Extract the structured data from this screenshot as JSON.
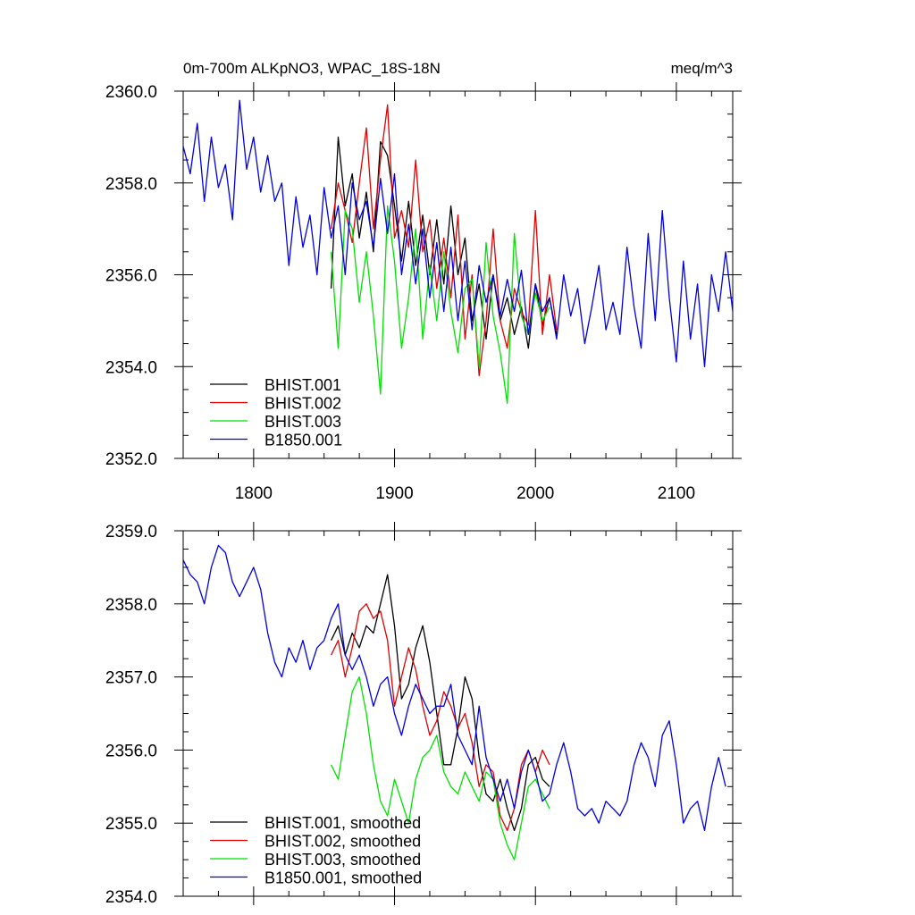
{
  "colors": {
    "BHIST.001": "#000000",
    "BHIST.002": "#e00000",
    "BHIST.003": "#00e000",
    "B1850.001": "#0000e0"
  },
  "chart_data": [
    {
      "type": "line",
      "title": "0m-700m ALKpNO3, WPAC_18S-18N",
      "units": "meq/m^3",
      "xlim": [
        1750,
        2140
      ],
      "ylim": [
        2352.0,
        2360.0
      ],
      "x_ticks": [
        1800,
        1900,
        2000,
        2100
      ],
      "x_tick_labels": [
        "1800",
        "1900",
        "2000",
        "2100"
      ],
      "y_ticks": [
        2352.0,
        2354.0,
        2356.0,
        2358.0,
        2360.0
      ],
      "y_tick_labels": [
        "2352.0",
        "2354.0",
        "2356.0",
        "2358.0",
        "2360.0"
      ],
      "legend_position": "bottom-left",
      "legend": [
        "BHIST.001",
        "BHIST.002",
        "BHIST.003",
        "B1850.001"
      ],
      "series": [
        {
          "name": "BHIST.001",
          "x": [
            1855,
            1860,
            1865,
            1870,
            1875,
            1880,
            1885,
            1890,
            1895,
            1900,
            1905,
            1910,
            1915,
            1920,
            1925,
            1930,
            1935,
            1940,
            1945,
            1950,
            1955,
            1960,
            1965,
            1970,
            1975,
            1980,
            1985,
            1990,
            1995,
            2000,
            2005,
            2010,
            2015
          ],
          "values": [
            2355.7,
            2359.0,
            2357.5,
            2358.2,
            2356.8,
            2357.8,
            2356.5,
            2358.9,
            2358.6,
            2357.5,
            2356.3,
            2357.6,
            2356.2,
            2357.3,
            2356.0,
            2357.2,
            2355.8,
            2357.5,
            2356.0,
            2356.8,
            2355.0,
            2355.8,
            2354.6,
            2356.0,
            2355.0,
            2355.5,
            2354.7,
            2355.3,
            2354.4,
            2355.8,
            2354.9,
            2355.5,
            2354.7
          ]
        },
        {
          "name": "BHIST.002",
          "x": [
            1855,
            1860,
            1865,
            1870,
            1875,
            1880,
            1885,
            1890,
            1895,
            1900,
            1905,
            1910,
            1915,
            1920,
            1925,
            1930,
            1935,
            1940,
            1945,
            1950,
            1955,
            1960,
            1965,
            1970,
            1975,
            1980,
            1985,
            1990,
            1995,
            2000,
            2005,
            2010,
            2015
          ],
          "values": [
            2357.0,
            2358.0,
            2357.4,
            2356.7,
            2358.0,
            2359.2,
            2357.0,
            2358.5,
            2359.7,
            2356.8,
            2357.4,
            2356.6,
            2358.5,
            2356.5,
            2357.2,
            2355.7,
            2356.8,
            2355.5,
            2357.3,
            2354.6,
            2356.0,
            2353.8,
            2355.0,
            2357.0,
            2355.0,
            2354.4,
            2355.7,
            2355.2,
            2354.9,
            2357.4,
            2354.7,
            2356.0,
            2354.8
          ]
        },
        {
          "name": "BHIST.003",
          "x": [
            1855,
            1860,
            1865,
            1870,
            1875,
            1880,
            1885,
            1890,
            1895,
            1900,
            1905,
            1910,
            1915,
            1920,
            1925,
            1930,
            1935,
            1940,
            1945,
            1950,
            1955,
            1960,
            1965,
            1970,
            1975,
            1980,
            1985,
            1990,
            1995,
            2000,
            2005,
            2010
          ],
          "values": [
            2356.5,
            2354.4,
            2357.4,
            2357.0,
            2355.4,
            2356.5,
            2355.1,
            2353.4,
            2357.5,
            2356.3,
            2354.4,
            2355.5,
            2357.0,
            2354.6,
            2356.2,
            2355.0,
            2356.5,
            2355.2,
            2354.3,
            2355.7,
            2355.9,
            2354.0,
            2356.7,
            2355.1,
            2354.3,
            2353.2,
            2356.9,
            2355.1,
            2354.7,
            2355.6,
            2355.0,
            2355.3
          ]
        },
        {
          "name": "B1850.001",
          "x": [
            1750,
            1755,
            1760,
            1765,
            1770,
            1775,
            1780,
            1785,
            1790,
            1795,
            1800,
            1805,
            1810,
            1815,
            1820,
            1825,
            1830,
            1835,
            1840,
            1845,
            1850,
            1855,
            1860,
            1865,
            1870,
            1875,
            1880,
            1885,
            1890,
            1895,
            1900,
            1905,
            1910,
            1915,
            1920,
            1925,
            1930,
            1935,
            1940,
            1945,
            1950,
            1955,
            1960,
            1965,
            1970,
            1975,
            1980,
            1985,
            1990,
            1995,
            2000,
            2005,
            2010,
            2015,
            2020,
            2025,
            2030,
            2035,
            2040,
            2045,
            2050,
            2055,
            2060,
            2065,
            2070,
            2075,
            2080,
            2085,
            2090,
            2095,
            2100,
            2105,
            2110,
            2115,
            2120,
            2125,
            2130,
            2135,
            2140
          ],
          "values": [
            2358.8,
            2358.2,
            2359.3,
            2357.6,
            2359.0,
            2357.9,
            2358.4,
            2357.2,
            2359.8,
            2358.3,
            2359.0,
            2357.8,
            2358.6,
            2357.6,
            2358.0,
            2356.2,
            2357.7,
            2356.6,
            2357.3,
            2356.0,
            2357.9,
            2356.8,
            2357.5,
            2356.0,
            2358.0,
            2357.2,
            2357.6,
            2356.6,
            2358.1,
            2356.9,
            2358.2,
            2356.0,
            2357.1,
            2355.8,
            2357.0,
            2355.5,
            2356.7,
            2355.2,
            2356.6,
            2355.0,
            2356.3,
            2354.8,
            2356.2,
            2355.4,
            2356.0,
            2355.1,
            2355.9,
            2355.2,
            2356.1,
            2354.7,
            2355.8,
            2355.2,
            2355.5,
            2354.6,
            2356.0,
            2355.1,
            2355.7,
            2354.5,
            2355.3,
            2356.2,
            2354.8,
            2355.4,
            2354.7,
            2356.6,
            2355.3,
            2354.4,
            2356.9,
            2355.0,
            2357.4,
            2355.5,
            2354.1,
            2356.3,
            2354.6,
            2355.8,
            2354.0,
            2356.0,
            2355.2,
            2356.5,
            2355.2
          ]
        }
      ]
    },
    {
      "type": "line",
      "title": "",
      "xlim": [
        1750,
        2140
      ],
      "ylim": [
        2354.0,
        2359.0
      ],
      "x_ticks": [
        1800,
        1900,
        2000,
        2100
      ],
      "y_ticks": [
        2354.0,
        2355.0,
        2356.0,
        2357.0,
        2358.0,
        2359.0
      ],
      "y_tick_labels": [
        "2354.0",
        "2355.0",
        "2356.0",
        "2357.0",
        "2358.0",
        "2359.0"
      ],
      "legend_position": "bottom-left",
      "legend": [
        "BHIST.001, smoothed",
        "BHIST.002, smoothed",
        "BHIST.003, smoothed",
        "B1850.001, smoothed"
      ],
      "series": [
        {
          "name": "BHIST.001, smoothed",
          "x": [
            1855,
            1860,
            1865,
            1870,
            1875,
            1880,
            1885,
            1890,
            1895,
            1900,
            1905,
            1910,
            1915,
            1920,
            1925,
            1930,
            1935,
            1940,
            1945,
            1950,
            1955,
            1960,
            1965,
            1970,
            1975,
            1980,
            1985,
            1990,
            1995,
            2000,
            2005,
            2010
          ],
          "values": [
            2357.5,
            2357.7,
            2357.3,
            2357.6,
            2357.4,
            2357.7,
            2357.6,
            2358.0,
            2358.4,
            2357.7,
            2356.7,
            2356.9,
            2357.4,
            2357.7,
            2357.2,
            2356.5,
            2355.8,
            2355.8,
            2356.3,
            2357.0,
            2356.7,
            2355.9,
            2355.4,
            2355.3,
            2355.6,
            2355.2,
            2354.9,
            2355.2,
            2355.8,
            2355.9,
            2355.6,
            2355.5
          ]
        },
        {
          "name": "BHIST.002, smoothed",
          "x": [
            1855,
            1860,
            1865,
            1870,
            1875,
            1880,
            1885,
            1890,
            1895,
            1900,
            1905,
            1910,
            1915,
            1920,
            1925,
            1930,
            1935,
            1940,
            1945,
            1950,
            1955,
            1960,
            1965,
            1970,
            1975,
            1980,
            1985,
            1990,
            1995,
            2000,
            2005,
            2010
          ],
          "values": [
            2357.3,
            2357.5,
            2357.0,
            2357.4,
            2357.9,
            2358.0,
            2357.8,
            2357.9,
            2357.5,
            2356.6,
            2357.0,
            2357.4,
            2357.1,
            2356.6,
            2356.2,
            2356.4,
            2356.8,
            2356.6,
            2356.3,
            2356.5,
            2356.1,
            2355.5,
            2355.8,
            2355.7,
            2355.1,
            2354.9,
            2355.2,
            2355.8,
            2356.0,
            2355.7,
            2356.0,
            2355.8
          ]
        },
        {
          "name": "BHIST.003, smoothed",
          "x": [
            1855,
            1860,
            1865,
            1870,
            1875,
            1880,
            1885,
            1890,
            1895,
            1900,
            1905,
            1910,
            1915,
            1920,
            1925,
            1930,
            1935,
            1940,
            1945,
            1950,
            1955,
            1960,
            1965,
            1970,
            1975,
            1980,
            1985,
            1990,
            1995,
            2000,
            2005,
            2010
          ],
          "values": [
            2355.8,
            2355.6,
            2356.2,
            2356.8,
            2357.0,
            2356.5,
            2355.8,
            2355.3,
            2355.1,
            2355.6,
            2355.3,
            2355.0,
            2355.6,
            2355.9,
            2356.0,
            2356.2,
            2355.7,
            2355.5,
            2355.4,
            2355.7,
            2355.5,
            2355.3,
            2355.7,
            2355.6,
            2355.0,
            2354.7,
            2354.5,
            2355.0,
            2355.5,
            2355.6,
            2355.4,
            2355.2
          ]
        },
        {
          "name": "B1850.001, smoothed",
          "x": [
            1750,
            1755,
            1760,
            1765,
            1770,
            1775,
            1780,
            1785,
            1790,
            1795,
            1800,
            1805,
            1810,
            1815,
            1820,
            1825,
            1830,
            1835,
            1840,
            1845,
            1850,
            1855,
            1860,
            1865,
            1870,
            1875,
            1880,
            1885,
            1890,
            1895,
            1900,
            1905,
            1910,
            1915,
            1920,
            1925,
            1930,
            1935,
            1940,
            1945,
            1950,
            1955,
            1960,
            1965,
            1970,
            1975,
            1980,
            1985,
            1990,
            1995,
            2000,
            2005,
            2010,
            2015,
            2020,
            2025,
            2030,
            2035,
            2040,
            2045,
            2050,
            2055,
            2060,
            2065,
            2070,
            2075,
            2080,
            2085,
            2090,
            2095,
            2100,
            2105,
            2110,
            2115,
            2120,
            2125,
            2130,
            2135
          ],
          "values": [
            2358.6,
            2358.4,
            2358.3,
            2358.0,
            2358.5,
            2358.8,
            2358.7,
            2358.3,
            2358.1,
            2358.3,
            2358.5,
            2358.2,
            2357.6,
            2357.2,
            2357.0,
            2357.4,
            2357.2,
            2357.5,
            2357.1,
            2357.4,
            2357.5,
            2357.8,
            2358.0,
            2357.3,
            2357.1,
            2357.3,
            2357.0,
            2356.6,
            2356.9,
            2357.0,
            2356.5,
            2356.2,
            2356.6,
            2356.9,
            2356.7,
            2356.5,
            2356.6,
            2356.6,
            2356.9,
            2356.2,
            2356.0,
            2355.8,
            2356.6,
            2355.9,
            2355.6,
            2355.3,
            2355.6,
            2355.2,
            2355.7,
            2356.0,
            2355.7,
            2355.3,
            2355.4,
            2355.8,
            2356.1,
            2355.7,
            2355.2,
            2355.1,
            2355.2,
            2355.0,
            2355.3,
            2355.2,
            2355.1,
            2355.3,
            2355.8,
            2356.1,
            2355.9,
            2355.5,
            2356.2,
            2356.4,
            2355.8,
            2355.0,
            2355.2,
            2355.3,
            2354.9,
            2355.5,
            2355.9,
            2355.5
          ]
        }
      ]
    }
  ]
}
